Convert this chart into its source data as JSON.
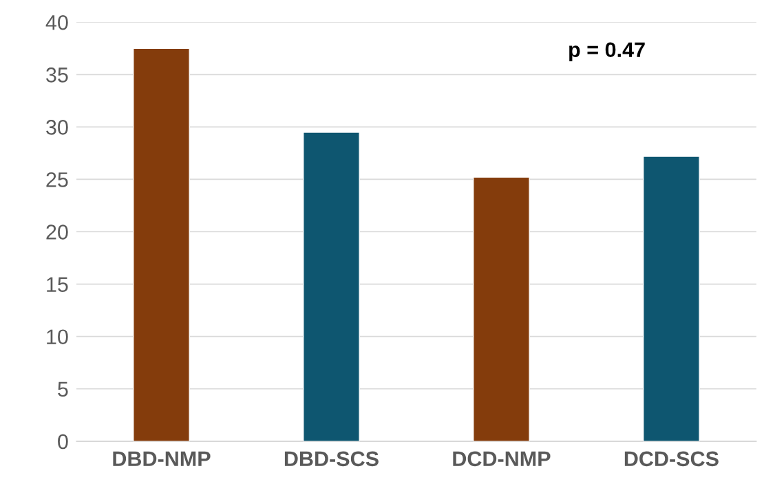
{
  "chart_data": {
    "type": "bar",
    "categories": [
      "DBD-NMP",
      "DBD-SCS",
      "DCD-NMP",
      "DCD-SCS"
    ],
    "values": [
      37.5,
      29.5,
      25.2,
      27.2
    ],
    "colors": [
      "#843c0c",
      "#0e5670",
      "#843c0c",
      "#0e5670"
    ],
    "ylim": [
      0,
      40
    ],
    "yticks": [
      0,
      5,
      10,
      15,
      20,
      25,
      30,
      35,
      40
    ],
    "grid": "y",
    "annotations": [
      "p = 0.47"
    ]
  }
}
